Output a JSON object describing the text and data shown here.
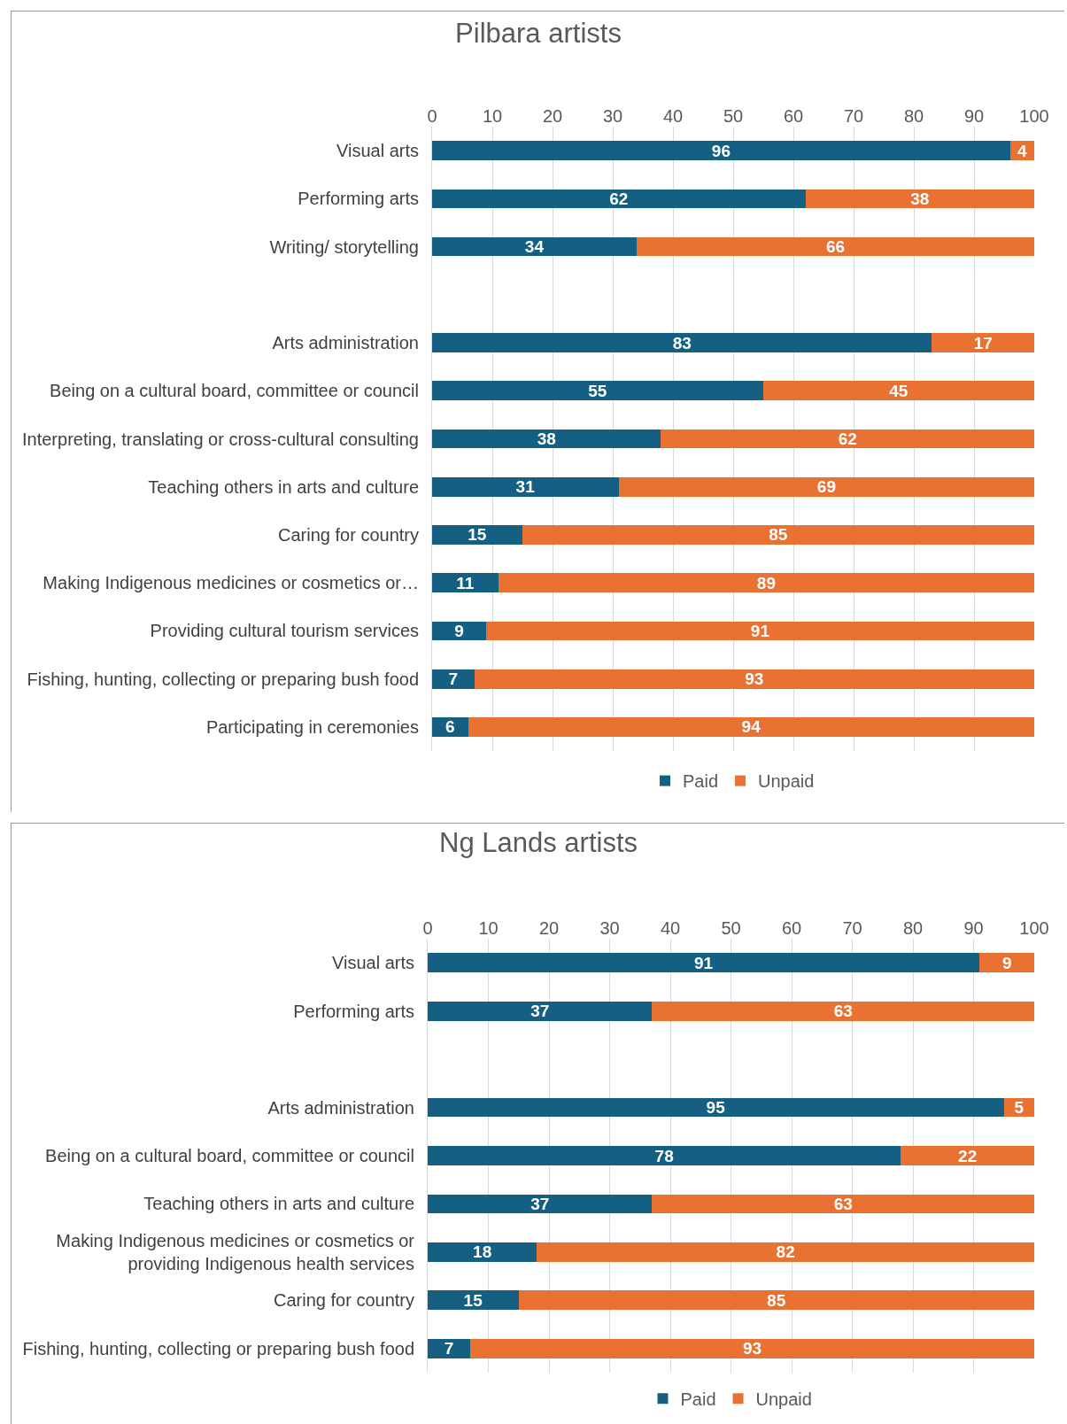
{
  "chart_data": [
    {
      "type": "bar",
      "title": "Pilbara artists",
      "orientation": "horizontal",
      "stacked": true,
      "categories": [
        "Visual arts",
        "Performing arts",
        "Writing/ storytelling",
        null,
        "Arts administration",
        "Being on a cultural board, committee or council",
        "Interpreting, translating or cross-cultural consulting",
        "Teaching others in arts and culture",
        "Caring for country",
        "Making Indigenous medicines or cosmetics or…",
        "Providing cultural tourism services",
        "Fishing, hunting, collecting or preparing bush food",
        "Participating in ceremonies"
      ],
      "series": [
        {
          "name": "Paid",
          "color": "#156082",
          "values": [
            96,
            62,
            34,
            null,
            83,
            55,
            38,
            31,
            15,
            11,
            9,
            7,
            6
          ]
        },
        {
          "name": "Unpaid",
          "color": "#e97132",
          "values": [
            4,
            38,
            66,
            null,
            17,
            45,
            62,
            69,
            85,
            89,
            91,
            93,
            94
          ]
        }
      ],
      "xlim": [
        0,
        100
      ],
      "xticks": [
        0,
        10,
        20,
        30,
        40,
        50,
        60,
        70,
        80,
        90,
        100
      ],
      "grid": "x",
      "legend": "bottom",
      "data_labels": true
    },
    {
      "type": "bar",
      "title": "Ng Lands artists",
      "orientation": "horizontal",
      "stacked": true,
      "categories": [
        "Visual arts",
        "Performing arts",
        null,
        "Arts administration",
        "Being on a cultural board, committee or council",
        "Teaching others in arts and culture",
        "Making Indigenous medicines or cosmetics or providing Indigenous health services",
        "Caring for country",
        "Fishing, hunting, collecting or preparing bush food"
      ],
      "series": [
        {
          "name": "Paid",
          "color": "#156082",
          "values": [
            91,
            37,
            null,
            95,
            78,
            37,
            18,
            15,
            7
          ]
        },
        {
          "name": "Unpaid",
          "color": "#e97132",
          "values": [
            9,
            63,
            null,
            5,
            22,
            63,
            82,
            85,
            93
          ]
        }
      ],
      "xlim": [
        0,
        100
      ],
      "xticks": [
        0,
        10,
        20,
        30,
        40,
        50,
        60,
        70,
        80,
        90,
        100
      ],
      "grid": "x",
      "legend": "bottom",
      "data_labels": true
    }
  ]
}
